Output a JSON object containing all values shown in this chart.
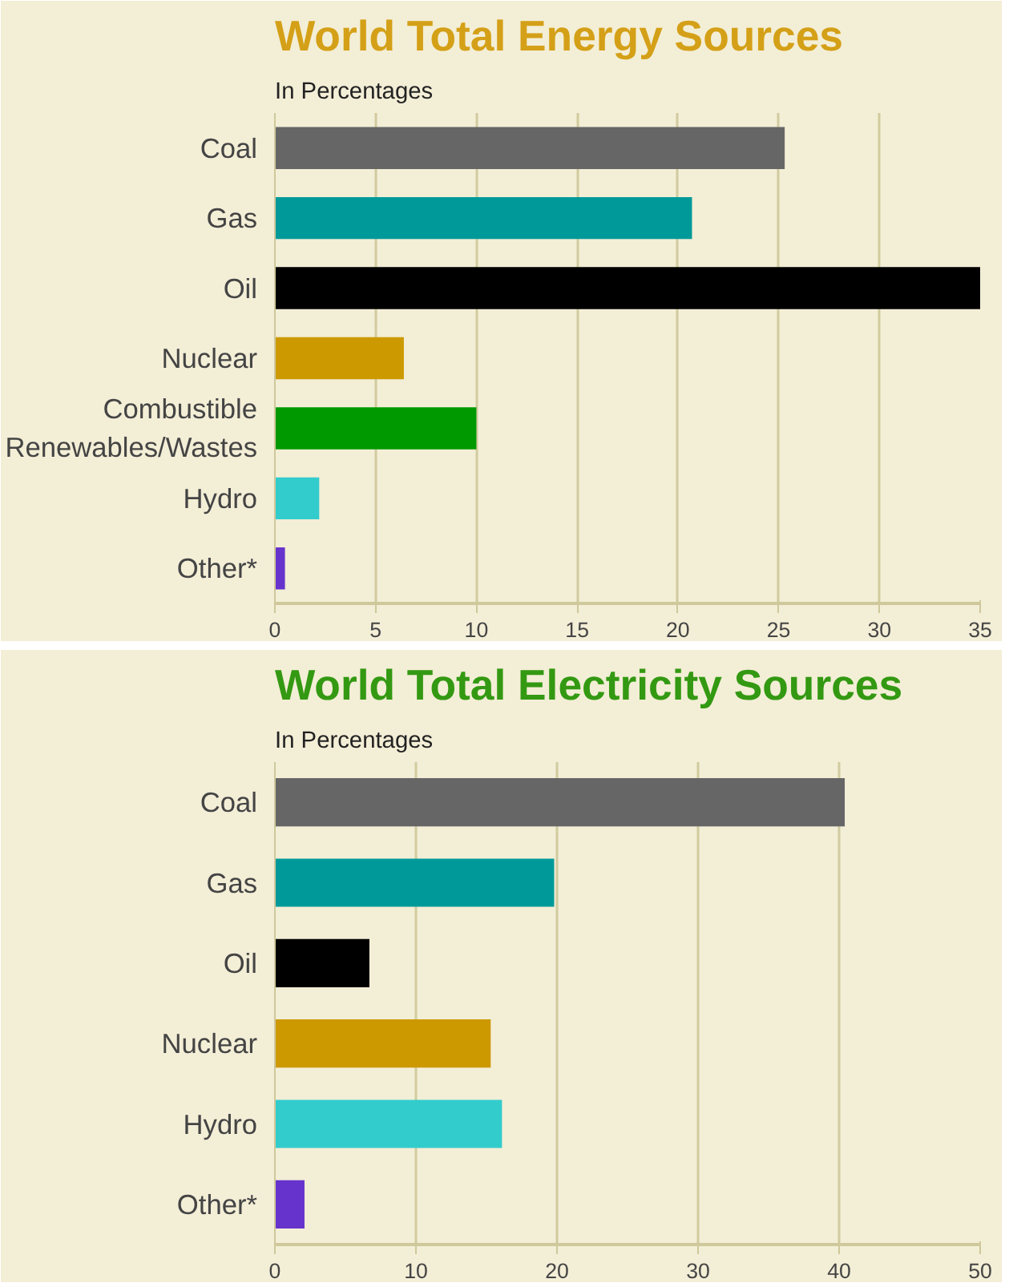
{
  "chart_data": [
    {
      "type": "bar",
      "orientation": "horizontal",
      "title": "World Total Energy Sources",
      "subtitle": "In Percentages",
      "categories": [
        "Coal",
        "Gas",
        "Oil",
        "Nuclear",
        "Combustible\nRenewables/Wastes",
        "Hydro",
        "Other*"
      ],
      "values": [
        25.3,
        20.7,
        35,
        6.4,
        10.0,
        2.2,
        0.5
      ],
      "colors": [
        "#666666",
        "#009999",
        "#000000",
        "#cc9900",
        "#009900",
        "#33cccc",
        "#6633cc"
      ],
      "xlim": [
        0,
        35
      ],
      "xticks": [
        0,
        5,
        10,
        15,
        20,
        25,
        30,
        35
      ],
      "grid": "x"
    },
    {
      "type": "bar",
      "orientation": "horizontal",
      "title": "World Total Electricity Sources",
      "subtitle": "In Percentages",
      "categories": [
        "Coal",
        "Gas",
        "Oil",
        "Nuclear",
        "Hydro",
        "Other*"
      ],
      "values": [
        40.4,
        19.8,
        6.7,
        15.3,
        16.1,
        2.1
      ],
      "colors": [
        "#666666",
        "#009999",
        "#000000",
        "#cc9900",
        "#33cccc",
        "#6633cc"
      ],
      "xlim": [
        0,
        50
      ],
      "xticks": [
        0,
        10,
        20,
        30,
        40,
        50
      ],
      "grid": "x"
    }
  ]
}
